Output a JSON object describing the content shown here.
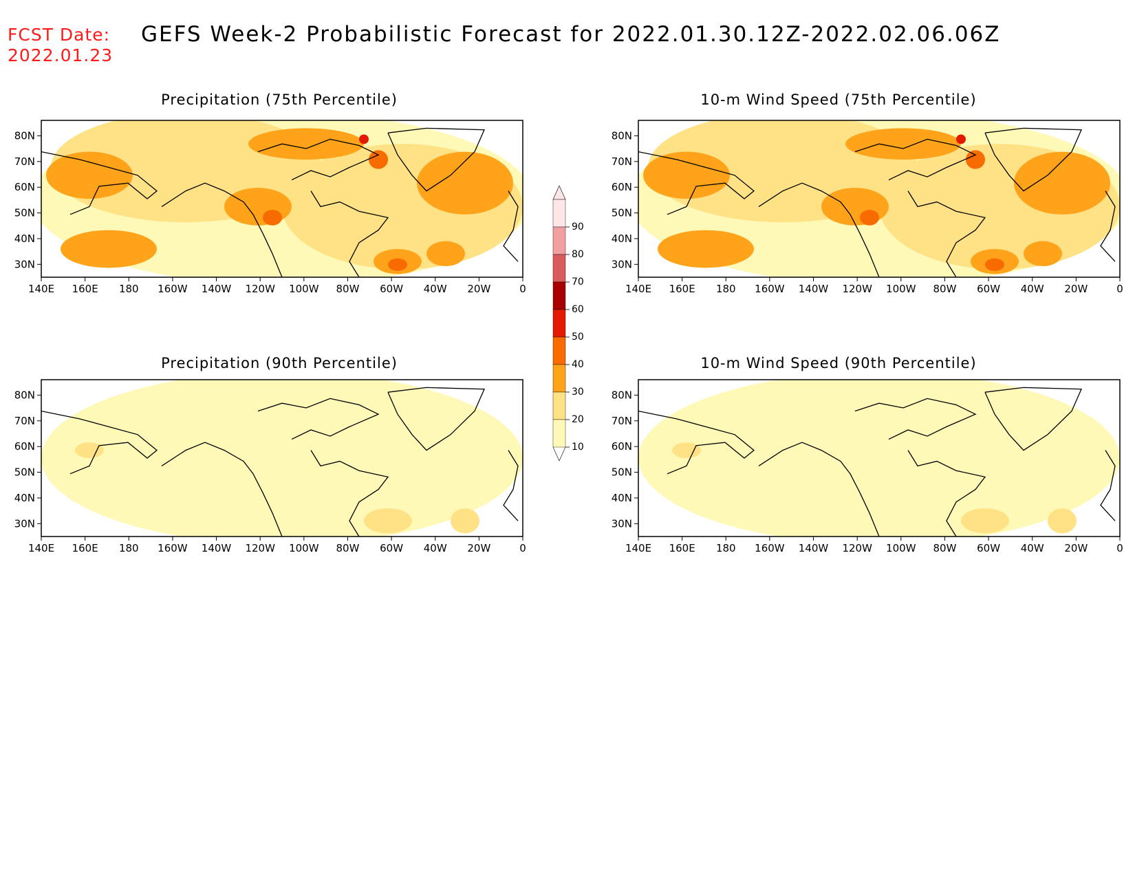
{
  "header": {
    "fcst_label": "FCST Date:",
    "fcst_date": "2022.01.23",
    "title": "GEFS Week-2 Probabilistic Forecast for 2022.01.30.12Z-2022.02.06.06Z"
  },
  "axes": {
    "lon_labels": [
      "140E",
      "160E",
      "180",
      "160W",
      "140W",
      "120W",
      "100W",
      "80W",
      "60W",
      "40W",
      "20W",
      "0"
    ],
    "lat_labels": [
      "80N",
      "70N",
      "60N",
      "50N",
      "40N",
      "30N"
    ]
  },
  "legend": {
    "values": [
      "10",
      "20",
      "30",
      "40",
      "50",
      "60",
      "70",
      "80",
      "90"
    ],
    "colors": [
      "#fff9b8",
      "#ffe285",
      "#ffa31a",
      "#f86b00",
      "#e31a00",
      "#a80000",
      "#d95d5d",
      "#f0a0a0",
      "#fde6e6"
    ]
  },
  "panels": [
    {
      "id": "precip-75",
      "title": "Precipitation (75th Percentile)",
      "intensity": "high"
    },
    {
      "id": "wind-75",
      "title": "10-m Wind Speed (75th Percentile)",
      "intensity": "high"
    },
    {
      "id": "precip-90",
      "title": "Precipitation (90th Percentile)",
      "intensity": "low"
    },
    {
      "id": "wind-90",
      "title": "10-m Wind Speed (90th Percentile)",
      "intensity": "low"
    }
  ]
}
